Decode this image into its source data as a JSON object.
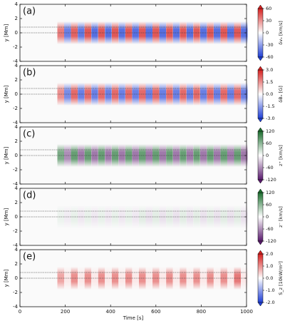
{
  "chart_data": [
    {
      "type": "heatmap",
      "label": "(a)",
      "ylabel": "y [Mm]",
      "cbar_label": "δvₓ [km/s]",
      "cmap": {
        "neg": "#1f3fd6",
        "pos": "#d6201f"
      },
      "clim": [
        -60,
        60
      ],
      "cticks": [
        60,
        30,
        0,
        -30,
        -60
      ],
      "xlim": [
        0,
        1000
      ],
      "xticks": [
        0,
        200,
        400,
        600,
        800,
        1000
      ],
      "ylim": [
        -4,
        4
      ],
      "yticks": [
        -4,
        -2,
        0,
        2,
        4
      ],
      "ref_lines": [
        0.8,
        0
      ],
      "x": [
        180,
        210,
        240,
        270,
        300,
        330,
        360,
        390,
        420,
        450,
        480,
        510,
        540,
        570,
        600,
        630,
        660,
        690,
        720,
        750,
        780,
        810,
        840,
        870,
        900,
        930,
        960,
        990
      ],
      "values": [
        35,
        -40,
        42,
        -42,
        45,
        -45,
        45,
        -45,
        45,
        -45,
        45,
        -45,
        45,
        -45,
        45,
        -45,
        45,
        -45,
        45,
        -45,
        45,
        -45,
        45,
        -45,
        45,
        -45,
        45,
        -45
      ]
    },
    {
      "type": "heatmap",
      "label": "(b)",
      "ylabel": "y [Mm]",
      "cbar_label": "δBₓ [G]",
      "cmap": {
        "neg": "#1f3fd6",
        "pos": "#d6201f"
      },
      "clim": [
        -3,
        3
      ],
      "cticks": [
        {
          "value": 3,
          "label": "3.0"
        },
        1.5,
        {
          "value": 0,
          "label": "0.0"
        },
        -1.5,
        {
          "value": -3,
          "label": "-3.0"
        }
      ],
      "xlim": [
        0,
        1000
      ],
      "xticks": [
        0,
        200,
        400,
        600,
        800,
        1000
      ],
      "ylim": [
        -4,
        4
      ],
      "yticks": [
        -4,
        -2,
        0,
        2,
        4
      ],
      "ref_lines": [
        0.8,
        0
      ],
      "x": [
        180,
        210,
        240,
        270,
        300,
        330,
        360,
        390,
        420,
        450,
        480,
        510,
        540,
        570,
        600,
        630,
        660,
        690,
        720,
        750,
        780,
        810,
        840,
        870,
        900,
        930,
        960,
        990
      ],
      "values": [
        1.5,
        -1.8,
        2,
        -2,
        2,
        -2,
        2,
        -2,
        2,
        -2,
        2,
        -2,
        2,
        -2,
        2,
        -2,
        2,
        -2,
        2,
        -2,
        2,
        -2,
        2,
        -2,
        2,
        -2,
        2,
        -2
      ]
    },
    {
      "type": "heatmap",
      "label": "(c)",
      "ylabel": "y [Mm]",
      "cbar_label": "z⁺ [km/s]",
      "cmap": {
        "neg": "#5a1a6e",
        "pos": "#1b6e2e"
      },
      "clim": [
        -120,
        120
      ],
      "cticks": [
        120,
        60,
        0,
        -60,
        -120
      ],
      "xlim": [
        0,
        1000
      ],
      "xticks": [
        0,
        200,
        400,
        600,
        800,
        1000
      ],
      "ylim": [
        -4,
        4
      ],
      "yticks": [
        -4,
        -2,
        0,
        2,
        4
      ],
      "ref_lines": [
        0.8,
        0
      ],
      "x": [
        180,
        210,
        240,
        270,
        300,
        330,
        360,
        390,
        420,
        450,
        480,
        510,
        540,
        570,
        600,
        630,
        660,
        690,
        720,
        750,
        780,
        810,
        840,
        870,
        900,
        930,
        960,
        990
      ],
      "values": [
        70,
        -60,
        80,
        -70,
        80,
        -70,
        80,
        -70,
        80,
        -70,
        80,
        -70,
        80,
        -70,
        80,
        -70,
        80,
        -70,
        80,
        -70,
        80,
        -70,
        80,
        -70,
        80,
        -70,
        80,
        -70
      ]
    },
    {
      "type": "heatmap",
      "label": "(d)",
      "ylabel": "y [Mm]",
      "cbar_label": "z⁻ [km/s]",
      "cmap": {
        "neg": "#5a1a6e",
        "pos": "#1b6e2e"
      },
      "clim": [
        -120,
        120
      ],
      "cticks": [
        120,
        60,
        0,
        -60,
        -120
      ],
      "xlim": [
        0,
        1000
      ],
      "xticks": [
        0,
        200,
        400,
        600,
        800,
        1000
      ],
      "ylim": [
        -4,
        4
      ],
      "yticks": [
        -4,
        -2,
        0,
        2,
        4
      ],
      "ref_lines": [
        0.8,
        0
      ],
      "x": [
        180,
        210,
        240,
        270,
        300,
        330,
        360,
        390,
        420,
        450,
        480,
        510,
        540,
        570,
        600,
        630,
        660,
        690,
        720,
        750,
        780,
        810,
        840,
        870,
        900,
        930,
        960,
        990
      ],
      "values": [
        10,
        -10,
        12,
        -12,
        12,
        -12,
        12,
        -12,
        12,
        -12,
        12,
        -12,
        15,
        -15,
        15,
        -15,
        15,
        -15,
        15,
        -15,
        15,
        -15,
        15,
        -15,
        15,
        -15,
        15,
        -15
      ]
    },
    {
      "type": "heatmap",
      "label": "(e)",
      "ylabel": "y [Mm]",
      "cbar_label": "S_z [10kW/m²]",
      "xlabel": "Time [s]",
      "cmap": {
        "neg": "#1f3fd6",
        "pos": "#d6201f"
      },
      "clim": [
        -2,
        2
      ],
      "cticks": [
        {
          "value": 2,
          "label": "2.0"
        },
        {
          "value": 1,
          "label": "1.0"
        },
        {
          "value": 0,
          "label": "0.0"
        },
        {
          "value": -1,
          "label": "-1.0"
        },
        {
          "value": -2,
          "label": "-2.0"
        }
      ],
      "xlim": [
        0,
        1000
      ],
      "xticks": [
        0,
        200,
        400,
        600,
        800,
        1000
      ],
      "ylim": [
        -4,
        4
      ],
      "yticks": [
        -4,
        -2,
        0,
        2,
        4
      ],
      "ref_lines": [
        0.8,
        0
      ],
      "x": [
        180,
        210,
        240,
        270,
        300,
        330,
        360,
        390,
        420,
        450,
        480,
        510,
        540,
        570,
        600,
        630,
        660,
        690,
        720,
        750,
        780,
        810,
        840,
        870,
        900,
        930,
        960,
        990
      ],
      "values": [
        0.8,
        0.2,
        1,
        0.2,
        1,
        0.2,
        1,
        0.2,
        1,
        0.2,
        1,
        0.2,
        1,
        0.2,
        1,
        0.2,
        1,
        0.2,
        1,
        0.2,
        1,
        0.2,
        1,
        0.2,
        1,
        0.2,
        1.2,
        0.2
      ]
    }
  ]
}
